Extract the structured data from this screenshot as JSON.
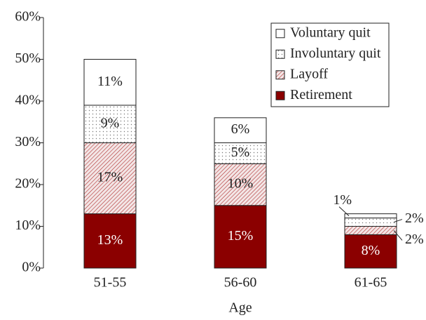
{
  "chart_data": {
    "type": "stacked-bar",
    "x_label": "Age",
    "categories": [
      "51-55",
      "56-60",
      "61-65"
    ],
    "series": [
      {
        "name": "Retirement",
        "color": "#8b0000",
        "fill": "solid",
        "values": [
          13,
          15,
          8
        ],
        "value_labels": [
          "13%",
          "15%",
          "8%"
        ]
      },
      {
        "name": "Layoff",
        "color": "#b03030",
        "fill": "hatch",
        "values": [
          17,
          10,
          2
        ],
        "value_labels": [
          "17%",
          "10%",
          "2%"
        ]
      },
      {
        "name": "Involuntary quit",
        "color": "#777777",
        "fill": "dots",
        "values": [
          9,
          5,
          2
        ],
        "value_labels": [
          "9%",
          "5%",
          "2%"
        ]
      },
      {
        "name": "Voluntary quit",
        "color": "#ffffff",
        "fill": "solid",
        "values": [
          11,
          6,
          1
        ],
        "value_labels": [
          "11%",
          "6%",
          "1%"
        ]
      }
    ],
    "ylim": [
      0,
      60
    ],
    "yticks": [
      {
        "value": 0,
        "label": "0%"
      },
      {
        "value": 10,
        "label": "10%"
      },
      {
        "value": 20,
        "label": "20%"
      },
      {
        "value": 30,
        "label": "30%"
      },
      {
        "value": 40,
        "label": "40%"
      },
      {
        "value": 50,
        "label": "50%"
      },
      {
        "value": 60,
        "label": "60%"
      }
    ],
    "legend": "top-right"
  }
}
